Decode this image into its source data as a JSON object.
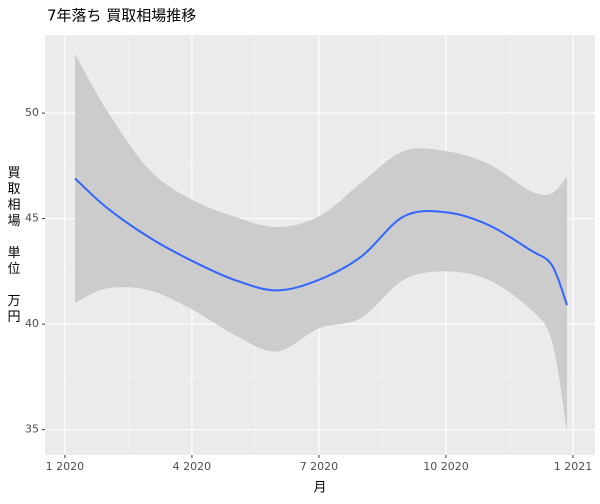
{
  "chart_data": {
    "type": "smooth",
    "title": "7年落ち 買取相場推移",
    "x_label": "月",
    "y_label": "買取相場 単位 万円",
    "x": [
      0.24,
      1,
      2,
      3,
      4,
      5,
      6,
      7,
      8,
      9,
      10,
      11,
      11.5,
      11.86
    ],
    "series": [
      {
        "color": "#3366ff",
        "band_color": "#cccccc",
        "values": [
          46.9,
          45.5,
          44.1,
          43.0,
          42.1,
          41.6,
          42.1,
          43.2,
          45.1,
          45.3,
          44.7,
          43.5,
          42.8,
          40.9
        ],
        "lower": [
          41.0,
          41.7,
          41.6,
          40.7,
          39.5,
          38.7,
          39.8,
          40.3,
          42.1,
          42.5,
          42.1,
          40.7,
          39.2,
          34.9
        ],
        "upper": [
          52.8,
          50.1,
          47.3,
          45.9,
          45.1,
          44.6,
          45.1,
          46.7,
          48.2,
          48.2,
          47.6,
          46.3,
          46.2,
          47.0
        ]
      }
    ],
    "xlim": [
      -0.47,
      12.52
    ],
    "ylim": [
      33.8,
      53.7
    ],
    "xticks": [
      {
        "value": 0,
        "label": "1 2020"
      },
      {
        "value": 3,
        "label": "4 2020"
      },
      {
        "value": 6,
        "label": "7 2020"
      },
      {
        "value": 9,
        "label": "10 2020"
      },
      {
        "value": 12,
        "label": "1 2021"
      }
    ],
    "yticks": [
      35,
      40,
      45,
      50
    ],
    "grid": true
  }
}
